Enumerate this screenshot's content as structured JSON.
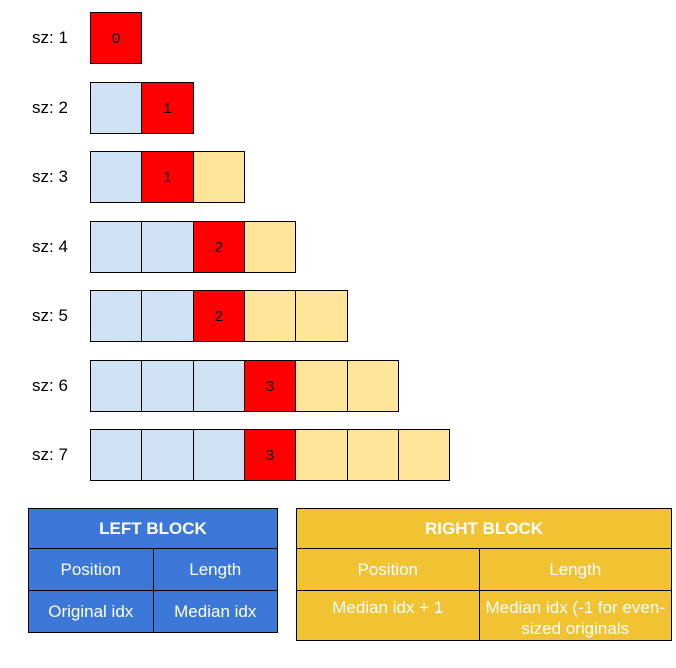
{
  "rows": [
    {
      "label": "sz: 1",
      "cells": [
        {
          "kind": "median",
          "text": "0"
        }
      ]
    },
    {
      "label": "sz: 2",
      "cells": [
        {
          "kind": "left",
          "text": ""
        },
        {
          "kind": "median",
          "text": "1"
        }
      ]
    },
    {
      "label": "sz: 3",
      "cells": [
        {
          "kind": "left",
          "text": ""
        },
        {
          "kind": "median",
          "text": "1"
        },
        {
          "kind": "right",
          "text": ""
        }
      ]
    },
    {
      "label": "sz: 4",
      "cells": [
        {
          "kind": "left",
          "text": ""
        },
        {
          "kind": "left",
          "text": ""
        },
        {
          "kind": "median",
          "text": "2"
        },
        {
          "kind": "right",
          "text": ""
        }
      ]
    },
    {
      "label": "sz: 5",
      "cells": [
        {
          "kind": "left",
          "text": ""
        },
        {
          "kind": "left",
          "text": ""
        },
        {
          "kind": "median",
          "text": "2"
        },
        {
          "kind": "right",
          "text": ""
        },
        {
          "kind": "right",
          "text": ""
        }
      ]
    },
    {
      "label": "sz: 6",
      "cells": [
        {
          "kind": "left",
          "text": ""
        },
        {
          "kind": "left",
          "text": ""
        },
        {
          "kind": "left",
          "text": ""
        },
        {
          "kind": "median",
          "text": "3"
        },
        {
          "kind": "right",
          "text": ""
        },
        {
          "kind": "right",
          "text": ""
        }
      ]
    },
    {
      "label": "sz: 7",
      "cells": [
        {
          "kind": "left",
          "text": ""
        },
        {
          "kind": "left",
          "text": ""
        },
        {
          "kind": "left",
          "text": ""
        },
        {
          "kind": "median",
          "text": "3"
        },
        {
          "kind": "right",
          "text": ""
        },
        {
          "kind": "right",
          "text": ""
        },
        {
          "kind": "right",
          "text": ""
        }
      ]
    }
  ],
  "colors": {
    "left": "#cfe2f3",
    "median": "#ff0000",
    "right": "#ffe599",
    "left_table": "#3c78d8",
    "right_table": "#f1c232"
  },
  "left_block": {
    "title": "LEFT BLOCK",
    "col1_header": "Position",
    "col2_header": "Length",
    "col1_value": "Original idx",
    "col2_value": "Median idx"
  },
  "right_block": {
    "title": "RIGHT BLOCK",
    "col1_header": "Position",
    "col2_header": "Length",
    "col1_value": "Median idx + 1",
    "col2_value": "Median idx (-1 for even-sized originals"
  }
}
